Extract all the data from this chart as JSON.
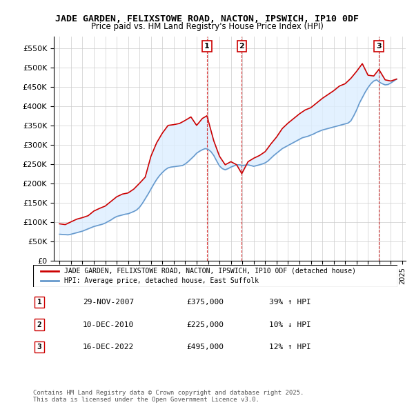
{
  "title": "JADE GARDEN, FELIXSTOWE ROAD, NACTON, IPSWICH, IP10 0DF",
  "subtitle": "Price paid vs. HM Land Registry's House Price Index (HPI)",
  "legend_line1": "JADE GARDEN, FELIXSTOWE ROAD, NACTON, IPSWICH, IP10 0DF (detached house)",
  "legend_line2": "HPI: Average price, detached house, East Suffolk",
  "footer": "Contains HM Land Registry data © Crown copyright and database right 2025.\nThis data is licensed under the Open Government Licence v3.0.",
  "sale_color": "#cc0000",
  "hpi_color": "#6699cc",
  "shade_color": "#ddeeff",
  "marker_box_color": "#cc0000",
  "ylim": [
    0,
    580000
  ],
  "yticks": [
    0,
    50000,
    100000,
    150000,
    200000,
    250000,
    300000,
    350000,
    400000,
    450000,
    500000,
    550000
  ],
  "ytick_labels": [
    "£0",
    "£50K",
    "£100K",
    "£150K",
    "£200K",
    "£250K",
    "£300K",
    "£350K",
    "£400K",
    "£450K",
    "£500K",
    "£550K"
  ],
  "transactions": [
    {
      "num": 1,
      "date": "29-NOV-2007",
      "price": 375000,
      "hpi_pct": "39% ↑ HPI",
      "year": 2007.9
    },
    {
      "num": 2,
      "date": "10-DEC-2010",
      "price": 225000,
      "hpi_pct": "10% ↓ HPI",
      "year": 2010.95
    },
    {
      "num": 3,
      "date": "16-DEC-2022",
      "price": 495000,
      "hpi_pct": "12% ↑ HPI",
      "year": 2022.95
    }
  ],
  "hpi_data": {
    "years": [
      1995.0,
      1995.25,
      1995.5,
      1995.75,
      1996.0,
      1996.25,
      1996.5,
      1996.75,
      1997.0,
      1997.25,
      1997.5,
      1997.75,
      1998.0,
      1998.25,
      1998.5,
      1998.75,
      1999.0,
      1999.25,
      1999.5,
      1999.75,
      2000.0,
      2000.25,
      2000.5,
      2000.75,
      2001.0,
      2001.25,
      2001.5,
      2001.75,
      2002.0,
      2002.25,
      2002.5,
      2002.75,
      2003.0,
      2003.25,
      2003.5,
      2003.75,
      2004.0,
      2004.25,
      2004.5,
      2004.75,
      2005.0,
      2005.25,
      2005.5,
      2005.75,
      2006.0,
      2006.25,
      2006.5,
      2006.75,
      2007.0,
      2007.25,
      2007.5,
      2007.75,
      2008.0,
      2008.25,
      2008.5,
      2008.75,
      2009.0,
      2009.25,
      2009.5,
      2009.75,
      2010.0,
      2010.25,
      2010.5,
      2010.75,
      2011.0,
      2011.25,
      2011.5,
      2011.75,
      2012.0,
      2012.25,
      2012.5,
      2012.75,
      2013.0,
      2013.25,
      2013.5,
      2013.75,
      2014.0,
      2014.25,
      2014.5,
      2014.75,
      2015.0,
      2015.25,
      2015.5,
      2015.75,
      2016.0,
      2016.25,
      2016.5,
      2016.75,
      2017.0,
      2017.25,
      2017.5,
      2017.75,
      2018.0,
      2018.25,
      2018.5,
      2018.75,
      2019.0,
      2019.25,
      2019.5,
      2019.75,
      2020.0,
      2020.25,
      2020.5,
      2020.75,
      2021.0,
      2021.25,
      2021.5,
      2021.75,
      2022.0,
      2022.25,
      2022.5,
      2022.75,
      2023.0,
      2023.25,
      2023.5,
      2023.75,
      2024.0,
      2024.25,
      2024.5
    ],
    "values": [
      68000,
      67500,
      67000,
      66500,
      68000,
      70000,
      72000,
      74000,
      76000,
      79000,
      82000,
      85000,
      88000,
      90000,
      92000,
      94000,
      97000,
      101000,
      105000,
      110000,
      114000,
      116000,
      118000,
      120000,
      121000,
      124000,
      127000,
      131000,
      138000,
      148000,
      160000,
      172000,
      185000,
      198000,
      210000,
      220000,
      228000,
      235000,
      240000,
      242000,
      243000,
      244000,
      245000,
      246000,
      250000,
      256000,
      263000,
      270000,
      278000,
      283000,
      287000,
      290000,
      288000,
      282000,
      272000,
      258000,
      245000,
      238000,
      235000,
      238000,
      242000,
      245000,
      248000,
      248000,
      246000,
      247000,
      248000,
      246000,
      244000,
      246000,
      248000,
      250000,
      253000,
      258000,
      265000,
      272000,
      278000,
      284000,
      290000,
      294000,
      298000,
      302000,
      306000,
      310000,
      314000,
      318000,
      320000,
      322000,
      325000,
      328000,
      332000,
      335000,
      338000,
      340000,
      342000,
      344000,
      346000,
      348000,
      350000,
      352000,
      354000,
      356000,
      362000,
      375000,
      390000,
      408000,
      422000,
      436000,
      448000,
      458000,
      465000,
      468000,
      462000,
      458000,
      455000,
      456000,
      460000,
      465000,
      470000
    ]
  },
  "sale_line_data": {
    "years": [
      1995.0,
      1995.5,
      1996.0,
      1996.5,
      1997.0,
      1997.5,
      1998.0,
      1998.5,
      1999.0,
      1999.5,
      2000.0,
      2000.5,
      2001.0,
      2001.5,
      2002.0,
      2002.5,
      2003.0,
      2003.5,
      2004.0,
      2004.5,
      2005.0,
      2005.5,
      2006.0,
      2006.5,
      2007.0,
      2007.5,
      2007.9,
      2008.5,
      2009.0,
      2009.5,
      2010.0,
      2010.5,
      2010.95,
      2011.5,
      2012.0,
      2012.5,
      2013.0,
      2013.5,
      2014.0,
      2014.5,
      2015.0,
      2015.5,
      2016.0,
      2016.5,
      2017.0,
      2017.5,
      2018.0,
      2018.5,
      2019.0,
      2019.5,
      2020.0,
      2020.5,
      2021.0,
      2021.5,
      2022.0,
      2022.5,
      2022.95,
      2023.5,
      2024.0,
      2024.5
    ],
    "values": [
      95000,
      93000,
      100000,
      107000,
      111000,
      116000,
      128000,
      135000,
      141000,
      153000,
      165000,
      172000,
      175000,
      185000,
      200000,
      216000,
      270000,
      305000,
      330000,
      350000,
      352000,
      355000,
      363000,
      372000,
      350000,
      368000,
      375000,
      310000,
      270000,
      248000,
      256000,
      248000,
      225000,
      256000,
      265000,
      272000,
      282000,
      302000,
      320000,
      342000,
      356000,
      368000,
      380000,
      390000,
      396000,
      408000,
      420000,
      430000,
      440000,
      452000,
      458000,
      472000,
      490000,
      510000,
      480000,
      478000,
      495000,
      468000,
      465000,
      470000
    ]
  }
}
